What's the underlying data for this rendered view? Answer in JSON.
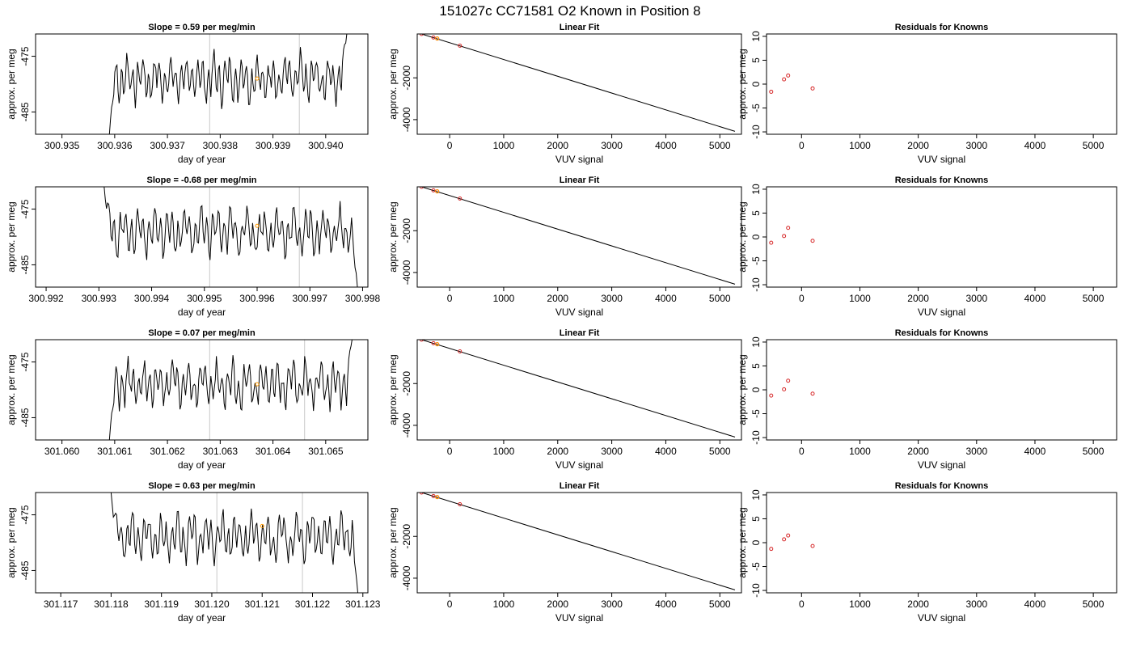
{
  "figure": {
    "title": "151027c     CC71581    O2 Known in Position  8",
    "colors": {
      "line": "#000000",
      "vline": "#c8c8c8",
      "known_point": "#d62728",
      "highlight_point": "#ff9900"
    }
  },
  "chart_data": [
    {
      "type": "line",
      "row": 1,
      "panel": "time_series",
      "title": "Slope =  0.59  per meg/min",
      "xlabel": "day of year",
      "ylabel": "approx. per meg",
      "xlim": [
        300.9345,
        300.9408
      ],
      "ylim": [
        -489,
        -471
      ],
      "x_ticks": [
        "300.935",
        "300.936",
        "300.937",
        "300.938",
        "300.939",
        "300.940"
      ],
      "x_tick_values": [
        300.935,
        300.936,
        300.937,
        300.938,
        300.939,
        300.94
      ],
      "y_ticks": [
        "-485",
        "-475"
      ],
      "y_tick_values": [
        -485,
        -475
      ],
      "x_start": 300.9359,
      "x_end": 300.9404,
      "start_y": -489,
      "end_y": -471,
      "mean": -479,
      "amplitude": 5,
      "vlines": [
        300.9378,
        300.9395
      ],
      "highlight": {
        "x": 300.9387,
        "y": -479
      }
    },
    {
      "type": "scatter",
      "row": 1,
      "panel": "linear_fit",
      "title": "Linear Fit",
      "xlabel": "VUV signal",
      "ylabel": "approx. per meg",
      "xlim": [
        -600,
        5400
      ],
      "ylim": [
        -4700,
        100
      ],
      "x_ticks": [
        "0",
        "1000",
        "2000",
        "3000",
        "4000",
        "5000"
      ],
      "x_tick_values": [
        0,
        1000,
        2000,
        3000,
        4000,
        5000
      ],
      "y_ticks": [
        "-2000",
        "-4000"
      ],
      "y_tick_values": [
        -2000,
        -4000
      ],
      "points": [
        [
          -520,
          100
        ],
        [
          -300,
          -70
        ],
        [
          -230,
          -120
        ],
        [
          190,
          -460
        ]
      ],
      "highlight": [
        [
          -230,
          -120
        ]
      ],
      "fit_line": [
        [
          -520,
          100
        ],
        [
          5280,
          -4560
        ]
      ]
    },
    {
      "type": "scatter",
      "row": 1,
      "panel": "residuals",
      "title": "Residuals for Knowns",
      "xlabel": "VUV signal",
      "ylabel": "approx. per meg",
      "xlim": [
        -600,
        5400
      ],
      "ylim": [
        -10.5,
        10.5
      ],
      "x_ticks": [
        "0",
        "1000",
        "2000",
        "3000",
        "4000",
        "5000"
      ],
      "x_tick_values": [
        0,
        1000,
        2000,
        3000,
        4000,
        5000
      ],
      "y_ticks": [
        "-10",
        "-5",
        "0",
        "5",
        "10"
      ],
      "y_tick_values": [
        -10,
        -5,
        0,
        5,
        10
      ],
      "points": [
        [
          -520,
          -1.6
        ],
        [
          -300,
          1.0
        ],
        [
          -230,
          1.8
        ],
        [
          190,
          -0.9
        ]
      ]
    },
    {
      "type": "line",
      "row": 2,
      "panel": "time_series",
      "title": "Slope =  -0.68  per meg/min",
      "xlabel": "day of year",
      "ylabel": "approx. per meg",
      "xlim": [
        300.9918,
        300.9981
      ],
      "ylim": [
        -489,
        -471
      ],
      "x_ticks": [
        "300.992",
        "300.993",
        "300.994",
        "300.995",
        "300.996",
        "300.997",
        "300.998"
      ],
      "x_tick_values": [
        300.992,
        300.993,
        300.994,
        300.995,
        300.996,
        300.997,
        300.998
      ],
      "y_ticks": [
        "-485",
        "-475"
      ],
      "y_tick_values": [
        -485,
        -475
      ],
      "x_start": 300.9931,
      "x_end": 300.9979,
      "start_y": -471,
      "end_y": -489,
      "mean": -479,
      "amplitude": 5,
      "vlines": [
        300.9951,
        300.9968
      ],
      "highlight": {
        "x": 300.996,
        "y": -478
      }
    },
    {
      "type": "scatter",
      "row": 2,
      "panel": "linear_fit",
      "title": "Linear Fit",
      "xlabel": "VUV signal",
      "ylabel": "approx. per meg",
      "xlim": [
        -600,
        5400
      ],
      "ylim": [
        -4700,
        100
      ],
      "x_ticks": [
        "0",
        "1000",
        "2000",
        "3000",
        "4000",
        "5000"
      ],
      "x_tick_values": [
        0,
        1000,
        2000,
        3000,
        4000,
        5000
      ],
      "y_ticks": [
        "-2000",
        "-4000"
      ],
      "y_tick_values": [
        -2000,
        -4000
      ],
      "points": [
        [
          -520,
          100
        ],
        [
          -300,
          -70
        ],
        [
          -230,
          -120
        ],
        [
          190,
          -460
        ]
      ],
      "highlight": [
        [
          -230,
          -120
        ]
      ],
      "fit_line": [
        [
          -520,
          100
        ],
        [
          5280,
          -4560
        ]
      ]
    },
    {
      "type": "scatter",
      "row": 2,
      "panel": "residuals",
      "title": "Residuals for Knowns",
      "xlabel": "VUV signal",
      "ylabel": "approx. per meg",
      "xlim": [
        -600,
        5400
      ],
      "ylim": [
        -10.5,
        10.5
      ],
      "x_ticks": [
        "0",
        "1000",
        "2000",
        "3000",
        "4000",
        "5000"
      ],
      "x_tick_values": [
        0,
        1000,
        2000,
        3000,
        4000,
        5000
      ],
      "y_ticks": [
        "-10",
        "-5",
        "0",
        "5",
        "10"
      ],
      "y_tick_values": [
        -10,
        -5,
        0,
        5,
        10
      ],
      "points": [
        [
          -520,
          -1.2
        ],
        [
          -300,
          0.2
        ],
        [
          -230,
          1.9
        ],
        [
          190,
          -0.8
        ]
      ]
    },
    {
      "type": "line",
      "row": 3,
      "panel": "time_series",
      "title": "Slope =  0.07  per meg/min",
      "xlabel": "day of year",
      "ylabel": "approx. per meg",
      "xlim": [
        301.0595,
        301.0658
      ],
      "ylim": [
        -489,
        -471
      ],
      "x_ticks": [
        "301.060",
        "301.061",
        "301.062",
        "301.063",
        "301.064",
        "301.065"
      ],
      "x_tick_values": [
        301.06,
        301.061,
        301.062,
        301.063,
        301.064,
        301.065
      ],
      "y_ticks": [
        "-485",
        "-475"
      ],
      "y_tick_values": [
        -485,
        -475
      ],
      "x_start": 301.0609,
      "x_end": 301.0655,
      "start_y": -489,
      "end_y": -471,
      "mean": -479,
      "amplitude": 5,
      "vlines": [
        301.0628,
        301.0646
      ],
      "highlight": {
        "x": 301.0637,
        "y": -479
      }
    },
    {
      "type": "scatter",
      "row": 3,
      "panel": "linear_fit",
      "title": "Linear Fit",
      "xlabel": "VUV signal",
      "ylabel": "approx. per meg",
      "xlim": [
        -600,
        5400
      ],
      "ylim": [
        -4700,
        100
      ],
      "x_ticks": [
        "0",
        "1000",
        "2000",
        "3000",
        "4000",
        "5000"
      ],
      "x_tick_values": [
        0,
        1000,
        2000,
        3000,
        4000,
        5000
      ],
      "y_ticks": [
        "-2000",
        "-4000"
      ],
      "y_tick_values": [
        -2000,
        -4000
      ],
      "points": [
        [
          -520,
          100
        ],
        [
          -300,
          -70
        ],
        [
          -230,
          -120
        ],
        [
          190,
          -460
        ]
      ],
      "highlight": [
        [
          -230,
          -120
        ]
      ],
      "fit_line": [
        [
          -520,
          100
        ],
        [
          5280,
          -4560
        ]
      ]
    },
    {
      "type": "scatter",
      "row": 3,
      "panel": "residuals",
      "title": "Residuals for Knowns",
      "xlabel": "VUV signal",
      "ylabel": "approx. per meg",
      "xlim": [
        -600,
        5400
      ],
      "ylim": [
        -10.5,
        10.5
      ],
      "x_ticks": [
        "0",
        "1000",
        "2000",
        "3000",
        "4000",
        "5000"
      ],
      "x_tick_values": [
        0,
        1000,
        2000,
        3000,
        4000,
        5000
      ],
      "y_ticks": [
        "-10",
        "-5",
        "0",
        "5",
        "10"
      ],
      "y_tick_values": [
        -10,
        -5,
        0,
        5,
        10
      ],
      "points": [
        [
          -520,
          -1.2
        ],
        [
          -300,
          0.1
        ],
        [
          -230,
          1.9
        ],
        [
          190,
          -0.8
        ]
      ]
    },
    {
      "type": "line",
      "row": 4,
      "panel": "time_series",
      "title": "Slope =  0.63  per meg/min",
      "xlabel": "day of year",
      "ylabel": "approx. per meg",
      "xlim": [
        301.1165,
        301.1231
      ],
      "ylim": [
        -489,
        -471
      ],
      "x_ticks": [
        "301.117",
        "301.118",
        "301.119",
        "301.120",
        "301.121",
        "301.122",
        "301.123"
      ],
      "x_tick_values": [
        301.117,
        301.118,
        301.119,
        301.12,
        301.121,
        301.122,
        301.123
      ],
      "y_ticks": [
        "-485",
        "-475"
      ],
      "y_tick_values": [
        -485,
        -475
      ],
      "x_start": 301.118,
      "x_end": 301.1229,
      "start_y": -471,
      "end_y": -489,
      "mean": -479,
      "amplitude": 5,
      "vlines": [
        301.1201,
        301.1218
      ],
      "highlight": {
        "x": 301.121,
        "y": -477
      }
    },
    {
      "type": "scatter",
      "row": 4,
      "panel": "linear_fit",
      "title": "Linear Fit",
      "xlabel": "VUV signal",
      "ylabel": "approx. per meg",
      "xlim": [
        -600,
        5400
      ],
      "ylim": [
        -4700,
        100
      ],
      "x_ticks": [
        "0",
        "1000",
        "2000",
        "3000",
        "4000",
        "5000"
      ],
      "x_tick_values": [
        0,
        1000,
        2000,
        3000,
        4000,
        5000
      ],
      "y_ticks": [
        "-2000",
        "-4000"
      ],
      "y_tick_values": [
        -2000,
        -4000
      ],
      "points": [
        [
          -520,
          100
        ],
        [
          -300,
          -70
        ],
        [
          -230,
          -120
        ],
        [
          190,
          -460
        ]
      ],
      "highlight": [
        [
          -230,
          -120
        ]
      ],
      "fit_line": [
        [
          -520,
          100
        ],
        [
          5280,
          -4560
        ]
      ]
    },
    {
      "type": "scatter",
      "row": 4,
      "panel": "residuals",
      "title": "Residuals for Knowns",
      "xlabel": "VUV signal",
      "ylabel": "approx. per meg",
      "xlim": [
        -600,
        5400
      ],
      "ylim": [
        -10.5,
        10.5
      ],
      "x_ticks": [
        "0",
        "1000",
        "2000",
        "3000",
        "4000",
        "5000"
      ],
      "x_tick_values": [
        0,
        1000,
        2000,
        3000,
        4000,
        5000
      ],
      "y_ticks": [
        "-10",
        "-5",
        "0",
        "5",
        "10"
      ],
      "y_tick_values": [
        -10,
        -5,
        0,
        5,
        10
      ],
      "points": [
        [
          -520,
          -1.3
        ],
        [
          -300,
          0.7
        ],
        [
          -230,
          1.5
        ],
        [
          190,
          -0.7
        ]
      ]
    }
  ]
}
